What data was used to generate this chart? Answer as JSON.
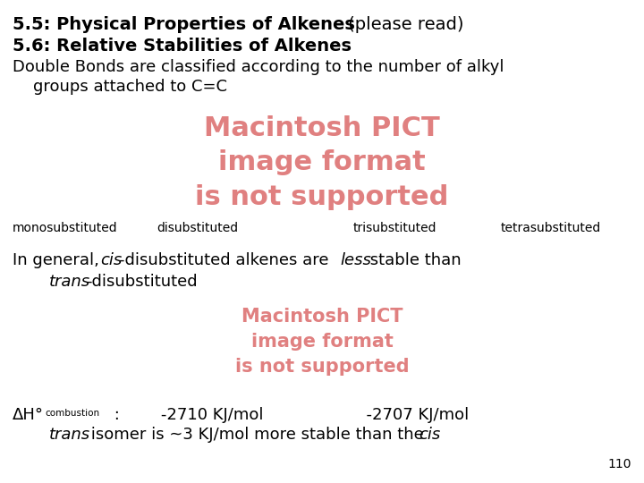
{
  "title1_bold": "5.5: Physical Properties of Alkenes",
  "title1_normal": " (please read)",
  "title2": "5.6: Relative Stabilities of Alkenes",
  "line3": "Double Bonds are classified according to the number of alkyl",
  "line4": "    groups attached to C=C",
  "pict_label1": "Macintosh PICT\nimage format\nis not supported",
  "pict_color": "#e08080",
  "labels_row": [
    "monosubstituted",
    "disubstituted",
    "trisubstituted",
    "tetrasubstituted"
  ],
  "page_num": "110",
  "bg_color": "#ffffff",
  "text_color": "#000000",
  "font_size_title": 14,
  "font_size_body": 13,
  "font_size_small": 10
}
